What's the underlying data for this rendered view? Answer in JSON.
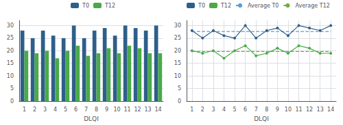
{
  "chart_data": [
    {
      "type": "bar",
      "xlabel": "DLQI",
      "categories": [
        1,
        2,
        3,
        4,
        5,
        6,
        7,
        8,
        9,
        10,
        11,
        12,
        13,
        14
      ],
      "series": [
        {
          "name": "T0",
          "color": "#2e5f8a",
          "values": [
            28,
            25,
            28,
            26,
            25,
            30,
            25,
            28,
            29,
            26,
            30,
            29,
            28,
            30
          ]
        },
        {
          "name": "T12",
          "color": "#4aaa48",
          "values": [
            20,
            19,
            20,
            17,
            20,
            22,
            18,
            19,
            21,
            19,
            22,
            21,
            19,
            19
          ]
        }
      ],
      "ylim": [
        0,
        32
      ],
      "yticks": [
        0,
        5,
        10,
        15,
        20,
        25,
        30
      ],
      "grid": true,
      "legend": "top"
    },
    {
      "type": "line",
      "xlabel": "DLQI",
      "x": [
        1,
        2,
        3,
        4,
        5,
        6,
        7,
        8,
        9,
        10,
        11,
        12,
        13,
        14
      ],
      "xlim": [
        0.5,
        14.5
      ],
      "xticks": [
        1,
        2,
        3,
        4,
        5,
        6,
        7,
        8,
        9,
        10,
        11,
        12,
        13,
        14
      ],
      "series": [
        {
          "name": "T0",
          "color": "#2e5f8a",
          "marker": "circle",
          "line_style": "solid",
          "values": [
            28,
            25,
            28,
            26,
            25,
            30,
            25,
            28,
            29,
            26,
            30,
            29,
            28,
            30
          ]
        },
        {
          "name": "T12",
          "color": "#4aaa48",
          "marker": "circle",
          "line_style": "solid",
          "values": [
            20,
            19,
            20,
            17,
            20,
            22,
            18,
            19,
            21,
            19,
            22,
            21,
            19,
            19
          ]
        },
        {
          "name": "Average T0",
          "color": "#5b9bd5",
          "marker": "none",
          "line_style": "dashed",
          "values": [
            27.642857142857142,
            27.642857142857142,
            27.642857142857142,
            27.642857142857142,
            27.642857142857142,
            27.642857142857142,
            27.642857142857142,
            27.642857142857142,
            27.642857142857142,
            27.642857142857142,
            27.642857142857142,
            27.642857142857142,
            27.642857142857142,
            27.642857142857142
          ]
        },
        {
          "name": "Average T12",
          "color": "#70ad47",
          "marker": "none",
          "line_style": "dashed",
          "values": [
            19.714285714285715,
            19.714285714285715,
            19.714285714285715,
            19.714285714285715,
            19.714285714285715,
            19.714285714285715,
            19.714285714285715,
            19.714285714285715,
            19.714285714285715,
            19.714285714285715,
            19.714285714285715,
            19.714285714285715,
            19.714285714285715,
            19.714285714285715
          ]
        }
      ],
      "ylim": [
        0,
        32
      ],
      "yticks": [
        0,
        5,
        10,
        15,
        20,
        25,
        30
      ],
      "grid": true,
      "legend": "top left"
    }
  ]
}
